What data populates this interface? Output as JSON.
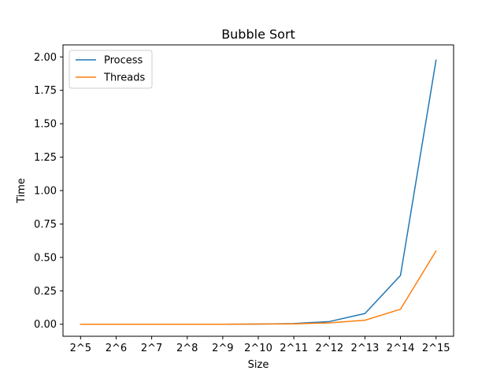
{
  "chart_data": {
    "type": "line",
    "title": "Bubble Sort",
    "xlabel": "Size",
    "ylabel": "Time",
    "categories": [
      "2^5",
      "2^6",
      "2^7",
      "2^8",
      "2^9",
      "2^10",
      "2^11",
      "2^12",
      "2^13",
      "2^14",
      "2^15"
    ],
    "ylim": [
      -0.09,
      2.09
    ],
    "yticks": [
      0.0,
      0.25,
      0.5,
      0.75,
      1.0,
      1.25,
      1.5,
      1.75,
      2.0
    ],
    "ytick_labels": [
      "0.00",
      "0.25",
      "0.50",
      "0.75",
      "1.00",
      "1.25",
      "1.50",
      "1.75",
      "2.00"
    ],
    "grid": false,
    "legend_position": "top-left",
    "series": [
      {
        "name": "Process",
        "color": "#1f77b4",
        "values": [
          0.0,
          0.0,
          0.0,
          0.0,
          0.0,
          0.001,
          0.005,
          0.02,
          0.08,
          0.365,
          1.975
        ]
      },
      {
        "name": "Threads",
        "color": "#ff7f0e",
        "values": [
          0.0,
          0.0,
          0.0,
          0.0,
          0.0,
          0.001,
          0.003,
          0.01,
          0.03,
          0.112,
          0.548
        ]
      }
    ]
  }
}
